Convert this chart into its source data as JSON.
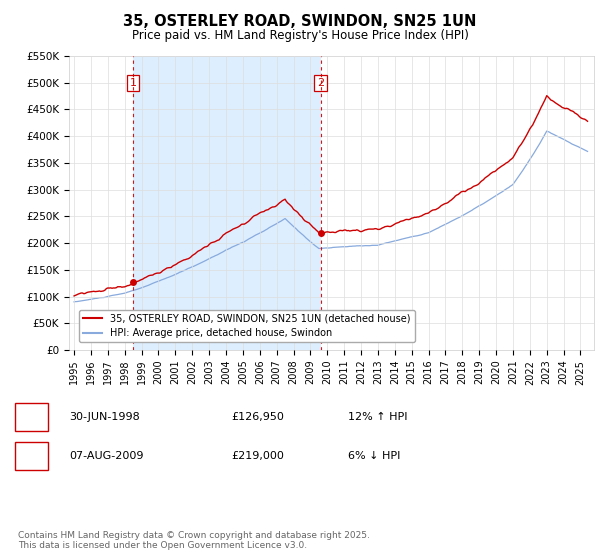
{
  "title": "35, OSTERLEY ROAD, SWINDON, SN25 1UN",
  "subtitle": "Price paid vs. HM Land Registry's House Price Index (HPI)",
  "ylabel_ticks": [
    "£0",
    "£50K",
    "£100K",
    "£150K",
    "£200K",
    "£250K",
    "£300K",
    "£350K",
    "£400K",
    "£450K",
    "£500K",
    "£550K"
  ],
  "ylim": [
    0,
    550000
  ],
  "ytick_values": [
    0,
    50000,
    100000,
    150000,
    200000,
    250000,
    300000,
    350000,
    400000,
    450000,
    500000,
    550000
  ],
  "sale1_date": 1998.5,
  "sale1_price": 126950,
  "sale1_label": "1",
  "sale2_date": 2009.6,
  "sale2_price": 219000,
  "sale2_label": "2",
  "line_color_property": "#cc0000",
  "line_color_hpi": "#88aadd",
  "vline_color": "#cc0000",
  "shade_color": "#ddeeff",
  "background_color": "#ffffff",
  "grid_color": "#dddddd",
  "legend_entry1": "35, OSTERLEY ROAD, SWINDON, SN25 1UN (detached house)",
  "legend_entry2": "HPI: Average price, detached house, Swindon",
  "annotation1_date": "30-JUN-1998",
  "annotation1_price": "£126,950",
  "annotation1_hpi": "12% ↑ HPI",
  "annotation2_date": "07-AUG-2009",
  "annotation2_price": "£219,000",
  "annotation2_hpi": "6% ↓ HPI",
  "footnote": "Contains HM Land Registry data © Crown copyright and database right 2025.\nThis data is licensed under the Open Government Licence v3.0.",
  "xlim_start": 1994.7,
  "xlim_end": 2025.8
}
